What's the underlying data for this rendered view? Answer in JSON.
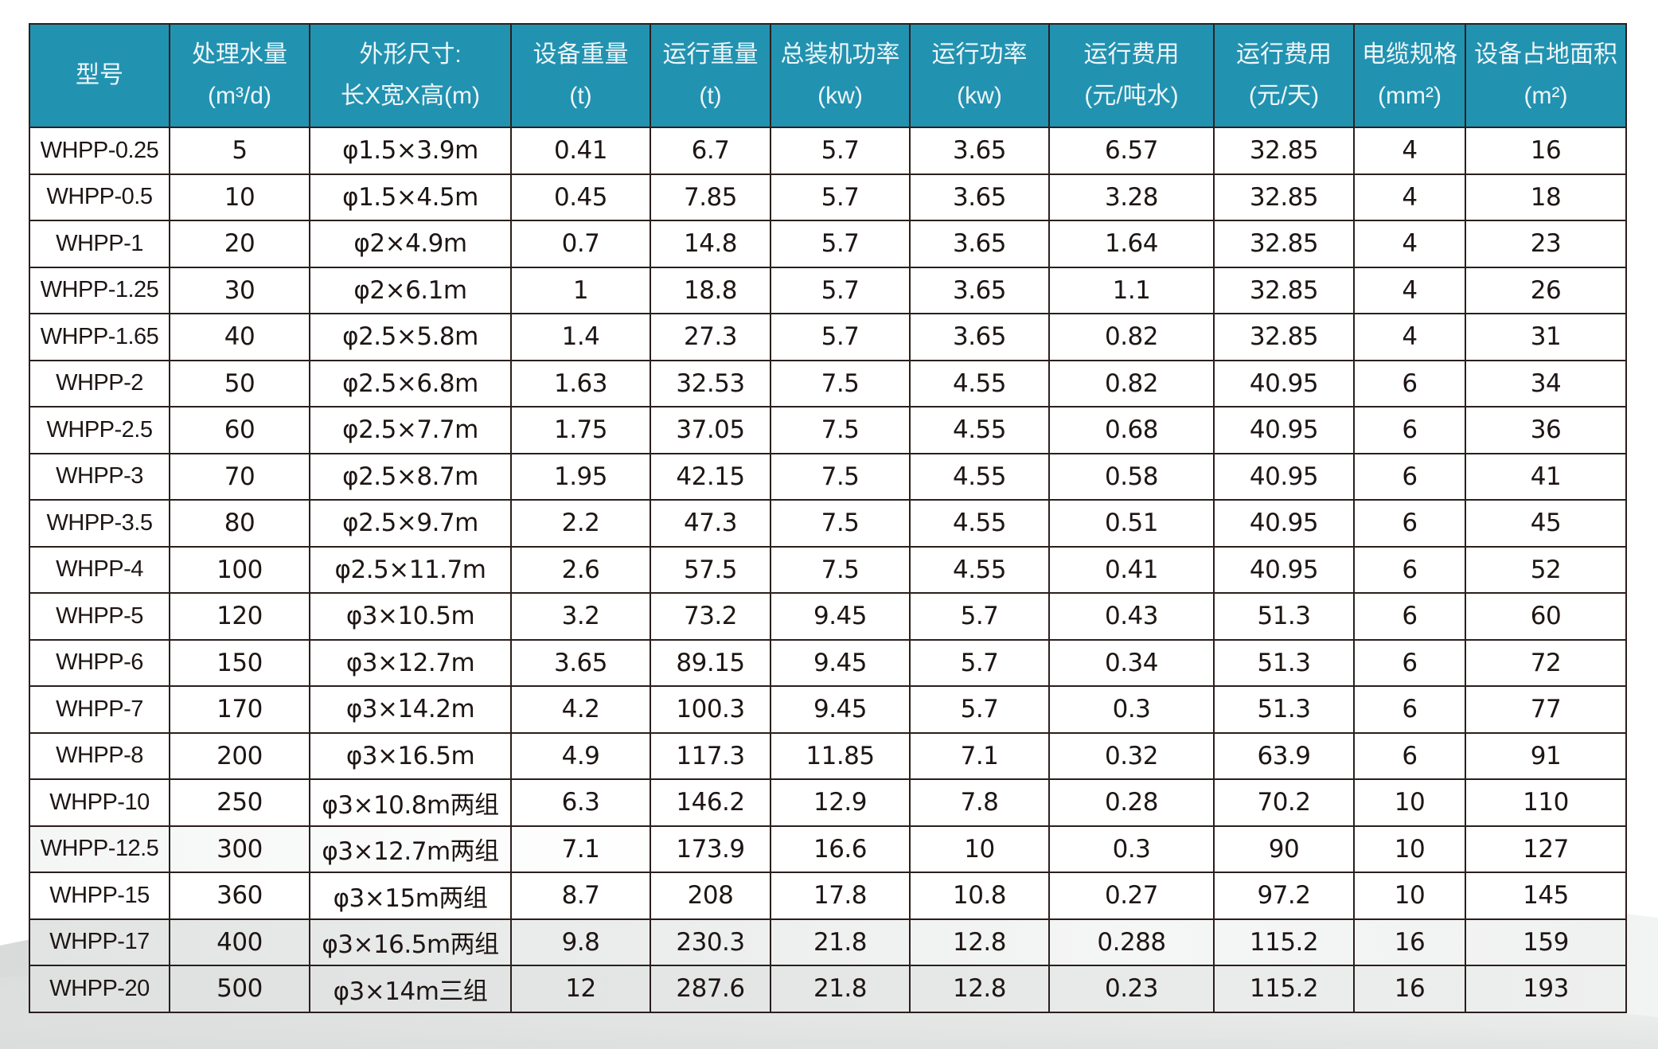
{
  "table": {
    "headers": [
      {
        "line1": "型号",
        "line2": ""
      },
      {
        "line1": "处理水量",
        "line2": "(m³/d)"
      },
      {
        "line1": "外形尺寸:",
        "line2": "长X宽X高(m)"
      },
      {
        "line1": "设备重量",
        "line2": "(t)"
      },
      {
        "line1": "运行重量",
        "line2": "(t)"
      },
      {
        "line1": "总装机功率",
        "line2": "(kw)"
      },
      {
        "line1": "运行功率",
        "line2": "(kw)"
      },
      {
        "line1": "运行费用",
        "line2": "(元/吨水)"
      },
      {
        "line1": "运行费用",
        "line2": "(元/天)"
      },
      {
        "line1": "电缆规格",
        "line2": "(mm²)"
      },
      {
        "line1": "设备占地面积",
        "line2": "(m²)"
      }
    ],
    "rows": [
      [
        "WHPP-0.25",
        "5",
        "φ1.5×3.9m",
        "0.41",
        "6.7",
        "5.7",
        "3.65",
        "6.57",
        "32.85",
        "4",
        "16"
      ],
      [
        "WHPP-0.5",
        "10",
        "φ1.5×4.5m",
        "0.45",
        "7.85",
        "5.7",
        "3.65",
        "3.28",
        "32.85",
        "4",
        "18"
      ],
      [
        "WHPP-1",
        "20",
        "φ2×4.9m",
        "0.7",
        "14.8",
        "5.7",
        "3.65",
        "1.64",
        "32.85",
        "4",
        "23"
      ],
      [
        "WHPP-1.25",
        "30",
        "φ2×6.1m",
        "1",
        "18.8",
        "5.7",
        "3.65",
        "1.1",
        "32.85",
        "4",
        "26"
      ],
      [
        "WHPP-1.65",
        "40",
        "φ2.5×5.8m",
        "1.4",
        "27.3",
        "5.7",
        "3.65",
        "0.82",
        "32.85",
        "4",
        "31"
      ],
      [
        "WHPP-2",
        "50",
        "φ2.5×6.8m",
        "1.63",
        "32.53",
        "7.5",
        "4.55",
        "0.82",
        "40.95",
        "6",
        "34"
      ],
      [
        "WHPP-2.5",
        "60",
        "φ2.5×7.7m",
        "1.75",
        "37.05",
        "7.5",
        "4.55",
        "0.68",
        "40.95",
        "6",
        "36"
      ],
      [
        "WHPP-3",
        "70",
        "φ2.5×8.7m",
        "1.95",
        "42.15",
        "7.5",
        "4.55",
        "0.58",
        "40.95",
        "6",
        "41"
      ],
      [
        "WHPP-3.5",
        "80",
        "φ2.5×9.7m",
        "2.2",
        "47.3",
        "7.5",
        "4.55",
        "0.51",
        "40.95",
        "6",
        "45"
      ],
      [
        "WHPP-4",
        "100",
        "φ2.5×11.7m",
        "2.6",
        "57.5",
        "7.5",
        "4.55",
        "0.41",
        "40.95",
        "6",
        "52"
      ],
      [
        "WHPP-5",
        "120",
        "φ3×10.5m",
        "3.2",
        "73.2",
        "9.45",
        "5.7",
        "0.43",
        "51.3",
        "6",
        "60"
      ],
      [
        "WHPP-6",
        "150",
        "φ3×12.7m",
        "3.65",
        "89.15",
        "9.45",
        "5.7",
        "0.34",
        "51.3",
        "6",
        "72"
      ],
      [
        "WHPP-7",
        "170",
        "φ3×14.2m",
        "4.2",
        "100.3",
        "9.45",
        "5.7",
        "0.3",
        "51.3",
        "6",
        "77"
      ],
      [
        "WHPP-8",
        "200",
        "φ3×16.5m",
        "4.9",
        "117.3",
        "11.85",
        "7.1",
        "0.32",
        "63.9",
        "6",
        "91"
      ],
      [
        "WHPP-10",
        "250",
        "φ3×10.8m两组",
        "6.3",
        "146.2",
        "12.9",
        "7.8",
        "0.28",
        "70.2",
        "10",
        "110"
      ],
      [
        "WHPP-12.5",
        "300",
        "φ3×12.7m两组",
        "7.1",
        "173.9",
        "16.6",
        "10",
        "0.3",
        "90",
        "10",
        "127"
      ],
      [
        "WHPP-15",
        "360",
        "φ3×15m两组",
        "8.7",
        "208",
        "17.8",
        "10.8",
        "0.27",
        "97.2",
        "10",
        "145"
      ],
      [
        "WHPP-17",
        "400",
        "φ3×16.5m两组",
        "9.8",
        "230.3",
        "21.8",
        "12.8",
        "0.288",
        "115.2",
        "16",
        "159"
      ],
      [
        "WHPP-20",
        "500",
        "φ3×14m三组",
        "12",
        "287.6",
        "21.8",
        "12.8",
        "0.23",
        "115.2",
        "16",
        "193"
      ]
    ]
  },
  "colors": {
    "header_bg": "#2292b1",
    "header_text": "#eef6f8",
    "border": "#2a1f1d",
    "cell_text": "#1e1614"
  }
}
